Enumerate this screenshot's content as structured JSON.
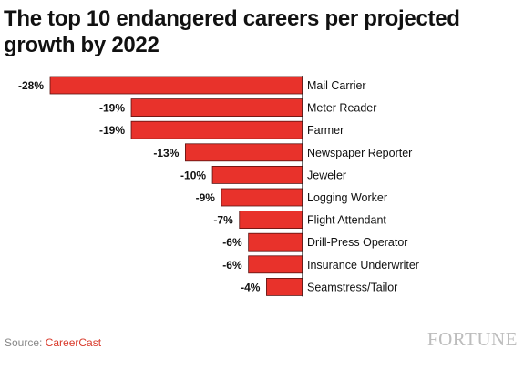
{
  "chart_data": {
    "type": "bar",
    "orientation": "horizontal",
    "title": "The top 10 endangered careers per projected growth by 2022",
    "categories": [
      "Mail Carrier",
      "Meter Reader",
      "Farmer",
      "Newspaper Reporter",
      "Jeweler",
      "Logging Worker",
      "Flight Attendant",
      "Drill-Press Operator",
      "Insurance Underwriter",
      "Seamstress/Tailor"
    ],
    "values": [
      -28,
      -19,
      -19,
      -13,
      -10,
      -9,
      -7,
      -6,
      -6,
      -4
    ],
    "value_labels": [
      "-28%",
      "-19%",
      "-19%",
      "-13%",
      "-10%",
      "-9%",
      "-7%",
      "-6%",
      "-6%",
      "-4%"
    ],
    "xlim": [
      -28,
      0
    ],
    "grid": false,
    "colors": {
      "bar": "#e8322b",
      "bar_stroke": "#5a1210",
      "axis": "#111111"
    }
  },
  "footer": {
    "source_prefix": "Source: ",
    "source_name": "CareerCast",
    "brand": "FORTUNE"
  }
}
